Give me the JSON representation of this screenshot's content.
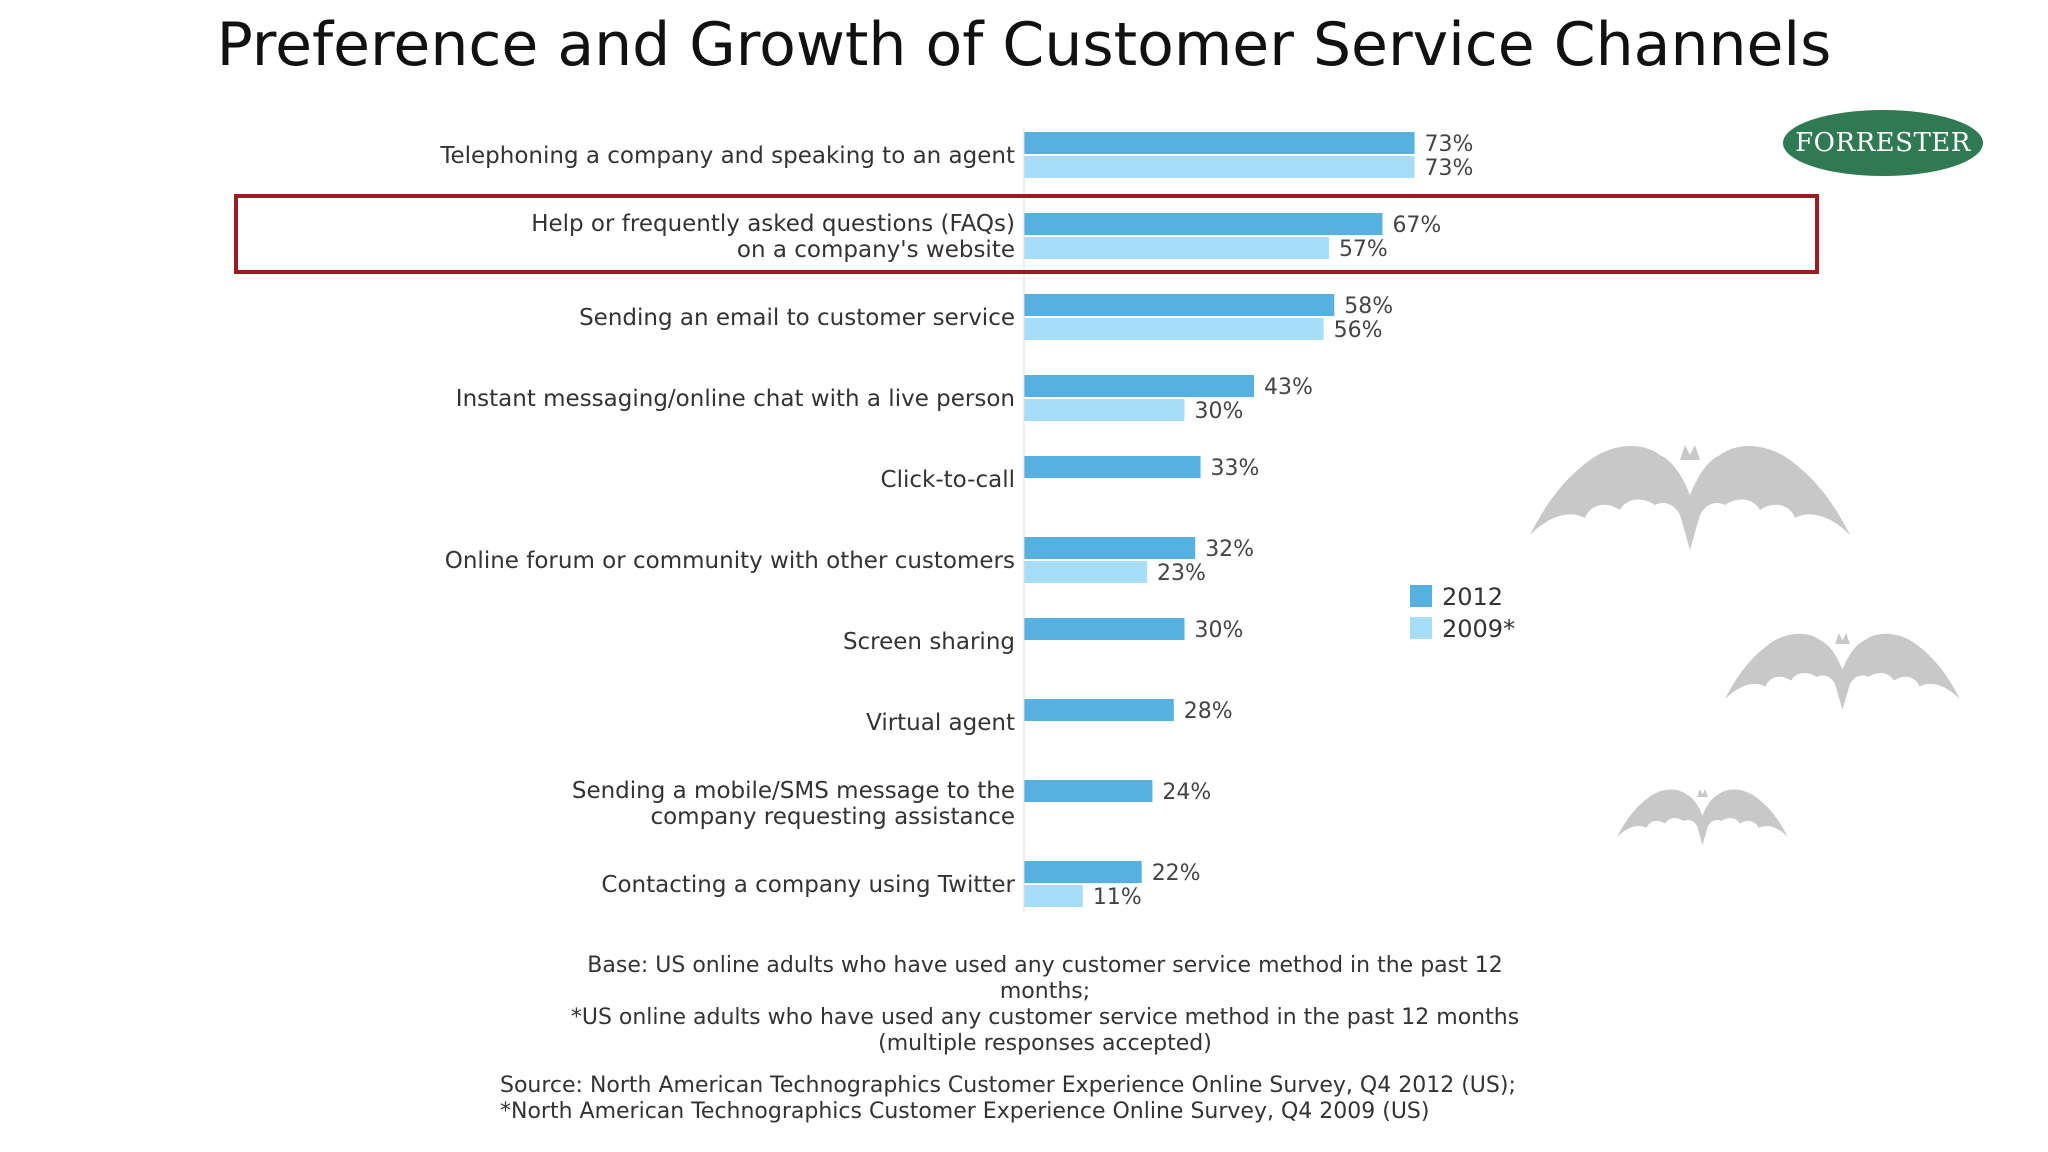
{
  "title": "Preference and Growth of Customer Service Channels",
  "logo": {
    "text": "FORRESTER",
    "color": "#2f7a52"
  },
  "chart_data": {
    "type": "bar",
    "orientation": "horizontal",
    "categories": [
      "Telephoning a company and speaking to an agent",
      "Help or frequently asked questions (FAQs) on a company's website",
      "Sending an email to customer service",
      "Instant messaging/online chat with a live person",
      "Click-to-call",
      "Online forum or community with other customers",
      "Screen sharing",
      "Virtual agent",
      "Sending a mobile/SMS message to the company requesting assistance",
      "Contacting a company using Twitter"
    ],
    "category_lines": [
      [
        "Telephoning a company and speaking to an agent"
      ],
      [
        "Help or frequently asked questions (FAQs)",
        "on a company's website"
      ],
      [
        "Sending an email to customer service"
      ],
      [
        "Instant messaging/online chat with a live person"
      ],
      [
        "Click-to-call"
      ],
      [
        "Online forum or community with other customers"
      ],
      [
        "Screen sharing"
      ],
      [
        "Virtual agent"
      ],
      [
        "Sending a mobile/SMS message to the",
        "company requesting assistance"
      ],
      [
        "Contacting a company using Twitter"
      ]
    ],
    "series": [
      {
        "name": "2012",
        "color": "#56b0e0",
        "values": [
          73,
          67,
          58,
          43,
          33,
          32,
          30,
          28,
          24,
          22
        ]
      },
      {
        "name": "2009*",
        "color": "#a6def7",
        "values": [
          73,
          57,
          56,
          30,
          null,
          23,
          null,
          null,
          null,
          11
        ]
      }
    ],
    "value_suffix": "%",
    "highlighted_category": "Help or frequently asked questions (FAQs) on a company's website",
    "legend_position": "right",
    "grid": false
  },
  "notes": {
    "base_lines": [
      "Base: US online adults who have used any customer service method in the past 12 months;",
      "*US online adults who have used any customer service method in the past 12 months",
      "(multiple responses accepted)"
    ],
    "source_lines": [
      "Source: North American Technographics Customer Experience Online Survey, Q4 2012 (US);",
      "*North American Technographics Customer Experience Online Survey, Q4 2009 (US)"
    ]
  },
  "colors": {
    "highlight_border": "#9b1b22",
    "bat_silhouette": "#c8c8c8"
  }
}
